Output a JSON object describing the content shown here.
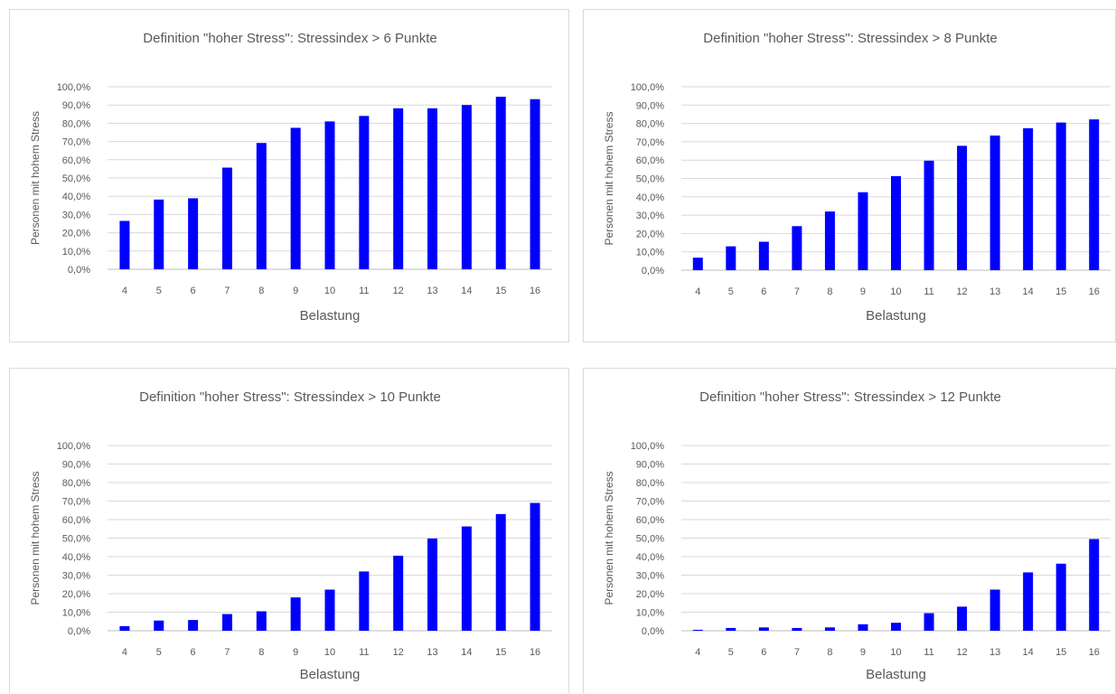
{
  "chart_data": [
    {
      "type": "bar",
      "title": "Definition \"hoher Stress\": Stressindex > 6 Punkte",
      "xlabel": "Belastung",
      "ylabel": "Personen mit hohem Stress",
      "ylim": [
        0,
        100
      ],
      "yticks": [
        "0,0%",
        "10,0%",
        "20,0%",
        "30,0%",
        "40,0%",
        "50,0%",
        "60,0%",
        "70,0%",
        "80,0%",
        "90,0%",
        "100,0%"
      ],
      "categories": [
        "4",
        "5",
        "6",
        "7",
        "8",
        "9",
        "10",
        "11",
        "12",
        "13",
        "14",
        "15",
        "16"
      ],
      "values": [
        26.5,
        38.2,
        38.9,
        55.7,
        69.2,
        77.5,
        81.0,
        84.0,
        88.2,
        88.2,
        90.0,
        94.5,
        93.2
      ],
      "grid": true,
      "legend": "none",
      "color": "#0000ff"
    },
    {
      "type": "bar",
      "title": "Definition \"hoher Stress\": Stressindex > 8 Punkte",
      "xlabel": "Belastung",
      "ylabel": "Personen mit hohem Stress",
      "ylim": [
        0,
        100
      ],
      "yticks": [
        "0,0%",
        "10,0%",
        "20,0%",
        "30,0%",
        "40,0%",
        "50,0%",
        "60,0%",
        "70,0%",
        "80,0%",
        "90,0%",
        "100,0%"
      ],
      "categories": [
        "4",
        "5",
        "6",
        "7",
        "8",
        "9",
        "10",
        "11",
        "12",
        "13",
        "14",
        "15",
        "16"
      ],
      "values": [
        6.8,
        13.0,
        15.5,
        24.0,
        32.0,
        42.5,
        51.3,
        59.7,
        67.8,
        73.4,
        77.4,
        80.5,
        82.2
      ],
      "grid": true,
      "legend": "none",
      "color": "#0000ff"
    },
    {
      "type": "bar",
      "title": "Definition \"hoher Stress\": Stressindex > 10 Punkte",
      "xlabel": "Belastung",
      "ylabel": "Personen mit hohem Stress",
      "ylim": [
        0,
        100
      ],
      "yticks": [
        "0,0%",
        "10,0%",
        "20,0%",
        "30,0%",
        "40,0%",
        "50,0%",
        "60,0%",
        "70,0%",
        "80,0%",
        "90,0%",
        "100,0%"
      ],
      "categories": [
        "4",
        "5",
        "6",
        "7",
        "8",
        "9",
        "10",
        "11",
        "12",
        "13",
        "14",
        "15",
        "16"
      ],
      "values": [
        2.5,
        5.5,
        5.8,
        9.0,
        10.5,
        18.0,
        22.2,
        32.0,
        40.5,
        49.8,
        56.3,
        63.0,
        69.0
      ],
      "grid": true,
      "legend": "none",
      "color": "#0000ff"
    },
    {
      "type": "bar",
      "title": "Definition \"hoher Stress\": Stressindex > 12 Punkte",
      "xlabel": "Belastung",
      "ylabel": "Personen mit hohem Stress",
      "ylim": [
        0,
        100
      ],
      "yticks": [
        "0,0%",
        "10,0%",
        "20,0%",
        "30,0%",
        "40,0%",
        "50,0%",
        "60,0%",
        "70,0%",
        "80,0%",
        "90,0%",
        "100,0%"
      ],
      "categories": [
        "4",
        "5",
        "6",
        "7",
        "8",
        "9",
        "10",
        "11",
        "12",
        "13",
        "14",
        "15",
        "16"
      ],
      "values": [
        0.5,
        1.5,
        1.8,
        1.5,
        1.8,
        3.5,
        4.3,
        9.5,
        13.0,
        22.2,
        31.5,
        36.2,
        49.5
      ],
      "grid": true,
      "legend": "none",
      "color": "#0000ff"
    }
  ]
}
